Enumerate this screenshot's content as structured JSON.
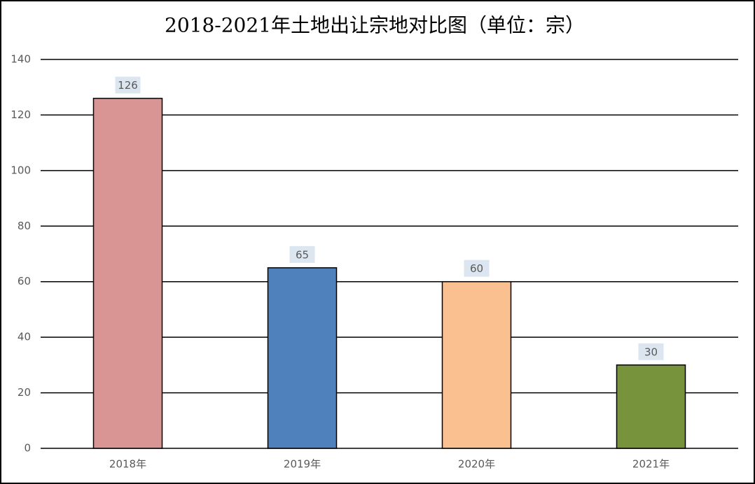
{
  "chart_data": {
    "type": "bar",
    "title": "2018-2021年土地出让宗地对比图（单位：宗）",
    "categories": [
      "2018年",
      "2019年",
      "2020年",
      "2021年"
    ],
    "values": [
      126,
      65,
      60,
      30
    ],
    "colors": [
      "#d99594",
      "#4f81bd",
      "#fac090",
      "#77933c"
    ],
    "ylim": [
      0,
      140
    ],
    "yticks": [
      0,
      20,
      40,
      60,
      80,
      100,
      120,
      140
    ],
    "grid": true
  }
}
